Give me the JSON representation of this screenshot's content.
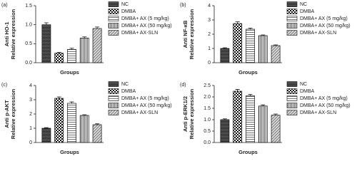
{
  "chart_data": [
    {
      "type": "bar",
      "panel_label": "(a)",
      "ylabel": [
        "Anti HO-1",
        "Relative expression"
      ],
      "xlabel": "Groups",
      "ylim": [
        0,
        1.5
      ],
      "yticks": [
        {
          "value": 0,
          "label": "0.0"
        },
        0.5,
        {
          "value": 1,
          "label": "1.0"
        },
        1.5
      ],
      "series": [
        {
          "name": "NC",
          "color": "#6e6e6e",
          "pattern": "hstripe-dense",
          "values": [
            1.0
          ],
          "errors": [
            0.05
          ]
        },
        {
          "name": "DMBA",
          "color": "#ffffff",
          "pattern": "checker",
          "values": [
            0.25
          ],
          "errors": [
            0.02
          ]
        },
        {
          "name": "DMBA+ AX (5 mg/kg)",
          "color": "#ffffff",
          "pattern": "hstripe",
          "values": [
            0.35
          ],
          "errors": [
            0.03
          ]
        },
        {
          "name": "DMBA+ AX (50 mg/kg)",
          "color": "#ffffff",
          "pattern": "vstripe",
          "values": [
            0.65
          ],
          "errors": [
            0.03
          ]
        },
        {
          "name": "DMBA+ AX-SLN",
          "color": "#d0d0d0",
          "pattern": "diag",
          "values": [
            0.9
          ],
          "errors": [
            0.04
          ]
        }
      ]
    },
    {
      "type": "bar",
      "panel_label": "(b)",
      "ylabel": [
        "Anti NF-κB",
        "Relative expression"
      ],
      "xlabel": "Groups",
      "ylim": [
        0,
        4
      ],
      "yticks": [
        0,
        1,
        2,
        3,
        4
      ],
      "series": [
        {
          "name": "NC",
          "color": "#6e6e6e",
          "pattern": "hstripe-dense",
          "values": [
            1.0
          ],
          "errors": [
            0.05
          ]
        },
        {
          "name": "DMBA",
          "color": "#ffffff",
          "pattern": "checker",
          "values": [
            2.75
          ],
          "errors": [
            0.12
          ]
        },
        {
          "name": "DMBA+ AX (5 mg/kg)",
          "color": "#ffffff",
          "pattern": "hstripe",
          "values": [
            2.35
          ],
          "errors": [
            0.08
          ]
        },
        {
          "name": "DMBA+ AX (50 mg/kg)",
          "color": "#ffffff",
          "pattern": "vstripe",
          "values": [
            1.9
          ],
          "errors": [
            0.05
          ]
        },
        {
          "name": "DMBA+ AX-SLN",
          "color": "#d0d0d0",
          "pattern": "diag",
          "values": [
            1.2
          ],
          "errors": [
            0.05
          ]
        }
      ]
    },
    {
      "type": "bar",
      "panel_label": "(c)",
      "ylabel": [
        "Anti p-AKT",
        "Relative expression"
      ],
      "xlabel": "Groups",
      "ylim": [
        0,
        4
      ],
      "yticks": [
        0,
        1,
        2,
        3,
        4
      ],
      "series": [
        {
          "name": "NC",
          "color": "#6e6e6e",
          "pattern": "hstripe-dense",
          "values": [
            1.0
          ],
          "errors": [
            0.04
          ]
        },
        {
          "name": "DMBA",
          "color": "#ffffff",
          "pattern": "checker",
          "values": [
            3.1
          ],
          "errors": [
            0.1
          ]
        },
        {
          "name": "DMBA+ AX (5 mg/kg)",
          "color": "#ffffff",
          "pattern": "hstripe",
          "values": [
            2.75
          ],
          "errors": [
            0.1
          ]
        },
        {
          "name": "DMBA+ AX (50 mg/kg)",
          "color": "#ffffff",
          "pattern": "vstripe",
          "values": [
            1.9
          ],
          "errors": [
            0.05
          ]
        },
        {
          "name": "DMBA+ AX-SLN",
          "color": "#d0d0d0",
          "pattern": "diag",
          "values": [
            1.25
          ],
          "errors": [
            0.06
          ]
        }
      ]
    },
    {
      "type": "bar",
      "panel_label": "(d)",
      "ylabel": [
        "Anti p-ERK1/2",
        "Relative expression"
      ],
      "xlabel": "Groups",
      "ylim": [
        0,
        2.5
      ],
      "yticks": [
        {
          "value": 0,
          "label": "0.0"
        },
        0.5,
        {
          "value": 1,
          "label": "1.0"
        },
        1.5,
        {
          "value": 2,
          "label": "2.0"
        },
        2.5
      ],
      "series": [
        {
          "name": "NC",
          "color": "#6e6e6e",
          "pattern": "hstripe-dense",
          "values": [
            1.0
          ],
          "errors": [
            0.04
          ]
        },
        {
          "name": "DMBA",
          "color": "#ffffff",
          "pattern": "checker",
          "values": [
            2.25
          ],
          "errors": [
            0.08
          ]
        },
        {
          "name": "DMBA+ AX (5 mg/kg)",
          "color": "#ffffff",
          "pattern": "hstripe",
          "values": [
            2.05
          ],
          "errors": [
            0.06
          ]
        },
        {
          "name": "DMBA+ AX (50 mg/kg)",
          "color": "#ffffff",
          "pattern": "vstripe",
          "values": [
            1.6
          ],
          "errors": [
            0.05
          ]
        },
        {
          "name": "DMBA+ AX-SLN",
          "color": "#d0d0d0",
          "pattern": "diag",
          "values": [
            1.2
          ],
          "errors": [
            0.05
          ]
        }
      ]
    }
  ]
}
